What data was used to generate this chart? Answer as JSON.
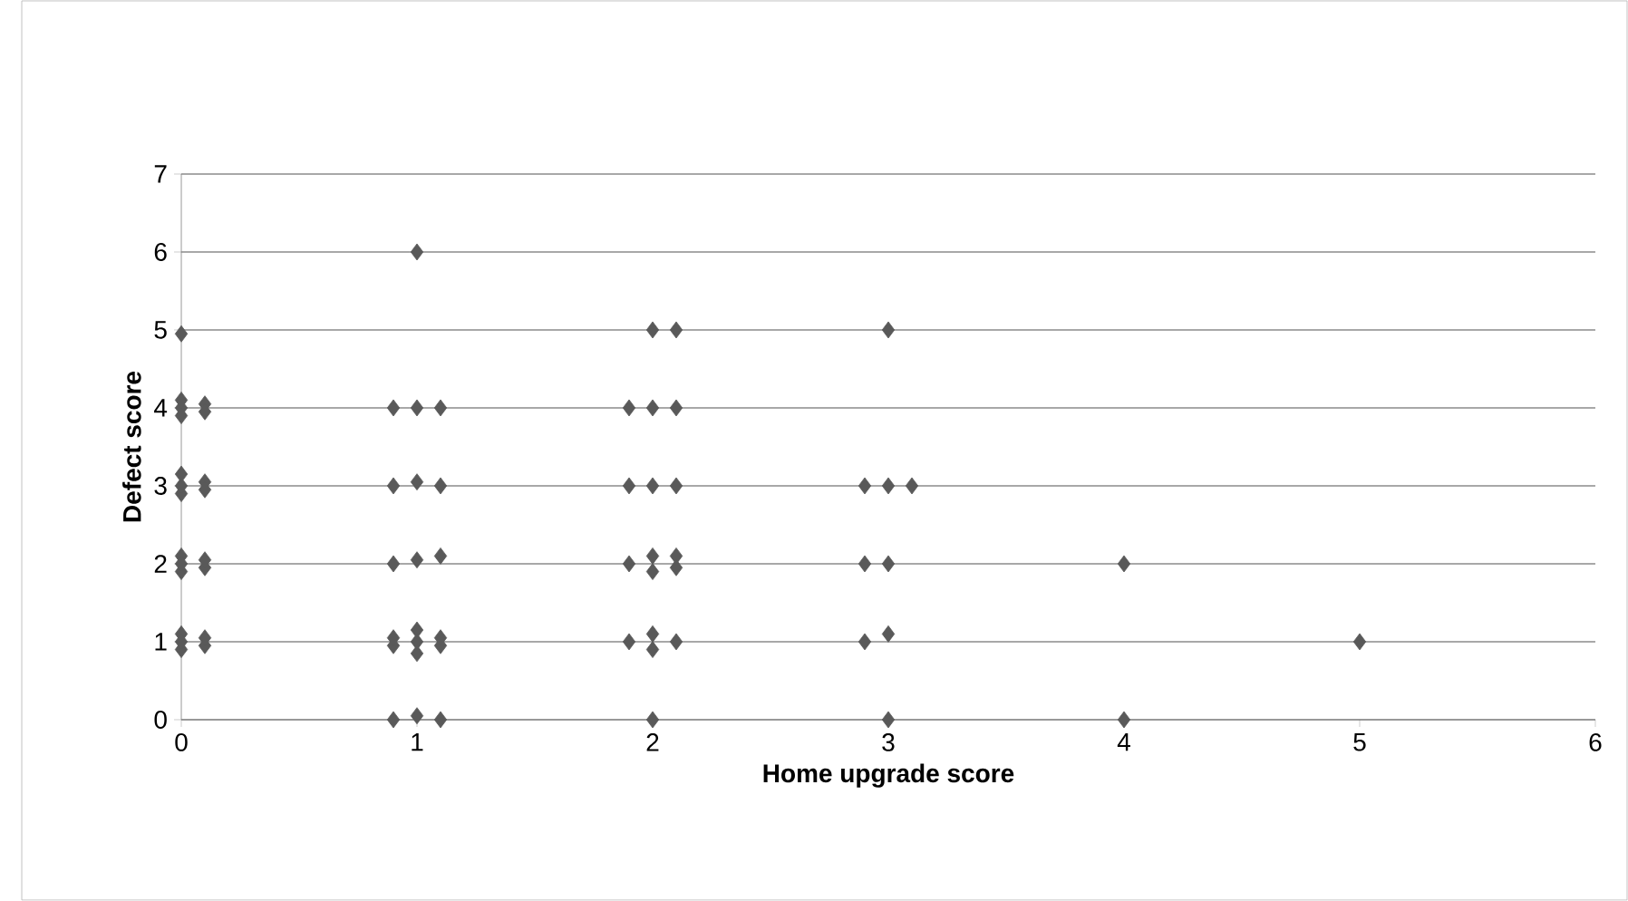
{
  "chart_data": {
    "type": "scatter",
    "xlabel": "Home upgrade score",
    "ylabel": "Defect score",
    "x": [
      0,
      0,
      0,
      0.1,
      0.1,
      0,
      0,
      0,
      0,
      0.1,
      0.1,
      0,
      0,
      0,
      0.1,
      0.1,
      0,
      0,
      0,
      0.1,
      0.1,
      1,
      0.9,
      1,
      1.1,
      0.9,
      1,
      1.1,
      0.9,
      1,
      1.1,
      0.9,
      0.9,
      1,
      1,
      1,
      1.1,
      1.1,
      0.9,
      1,
      1.1,
      2,
      2.1,
      1.9,
      2,
      2.1,
      1.9,
      2,
      2.1,
      1.9,
      2,
      2,
      2.1,
      2.1,
      1.9,
      2,
      2,
      2.1,
      2,
      3,
      2.9,
      3,
      3.1,
      2.9,
      3,
      2.9,
      3,
      3,
      4,
      4,
      5
    ],
    "values": [
      4.95,
      4,
      3.9,
      4.05,
      3.95,
      4.1,
      2.9,
      3,
      3.15,
      3.05,
      2.95,
      1.9,
      2.1,
      2,
      1.95,
      2.05,
      0.9,
      1.1,
      1,
      0.95,
      1.05,
      6,
      4,
      4,
      4,
      3,
      3.05,
      3,
      2,
      2.05,
      2.1,
      0.95,
      1.05,
      0.85,
      1.15,
      1,
      0.95,
      1.05,
      0,
      0.05,
      0,
      5,
      5,
      4,
      4,
      4,
      3,
      3,
      3,
      2,
      2.1,
      1.9,
      2.1,
      1.95,
      1,
      1.1,
      0.9,
      1,
      0,
      5,
      3,
      3,
      3,
      2,
      2,
      1,
      1.1,
      0,
      2,
      0,
      1
    ],
    "color": "#595959",
    "marker": "diamond",
    "grid": "y",
    "xlim": [
      0,
      6
    ],
    "xticks": [
      0,
      1,
      2,
      3,
      4,
      5,
      6
    ],
    "ylim": [
      0,
      7
    ],
    "yticks": [
      0,
      1,
      2,
      3,
      4,
      5,
      6,
      7
    ]
  }
}
